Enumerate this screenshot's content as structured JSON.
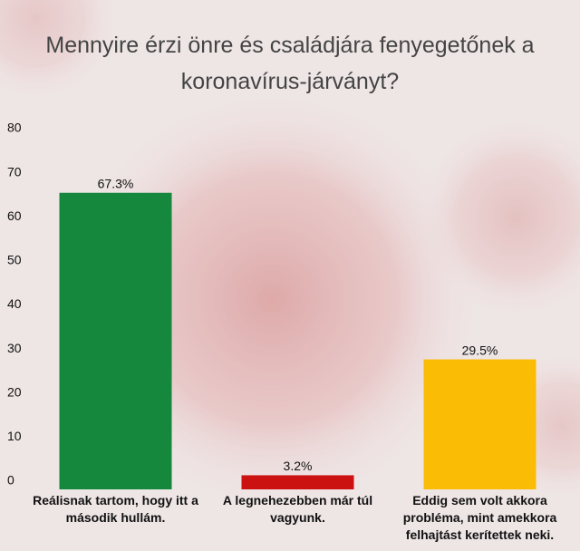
{
  "chart_data": {
    "type": "bar",
    "title": "Mennyire érzi önre és családjára fenyegetőnek a koronavírus-járványt?",
    "categories": [
      "Reálisnak tartom, hogy itt a második hullám.",
      "A legnehezebben már túl vagyunk.",
      "Eddig sem volt akkora probléma, mint amekkora felhajtást kerítettek neki."
    ],
    "values": [
      67.3,
      3.2,
      29.5
    ],
    "value_labels": [
      "67.3%",
      "3.2%",
      "29.5%"
    ],
    "colors": [
      "#15883e",
      "#cc1111",
      "#fbbc05"
    ],
    "ylim": [
      0,
      80
    ],
    "yticks": [
      0,
      10,
      20,
      30,
      40,
      50,
      60,
      70,
      80
    ],
    "grid": false
  }
}
